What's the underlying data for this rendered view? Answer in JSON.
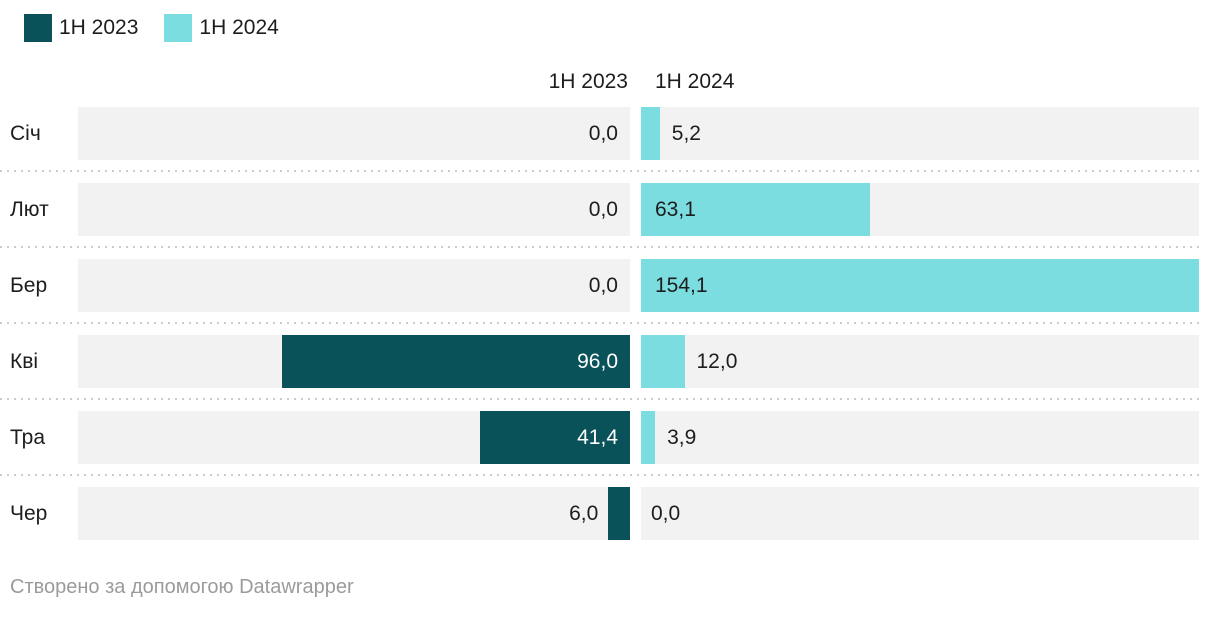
{
  "colors": {
    "series_2023": "#09525a",
    "series_2024": "#7bdde0",
    "track": "#f2f2f2",
    "text": "#1d1d1d",
    "value_on_dark": "#ffffff",
    "muted": "#9b9b9b",
    "separator": "#cbcbcb"
  },
  "legend": {
    "items": [
      {
        "label": "1Н 2023",
        "color_key": "series_2023"
      },
      {
        "label": "1Н 2024",
        "color_key": "series_2024"
      }
    ]
  },
  "columns": {
    "left_header": "1Н 2023",
    "right_header": "1Н 2024"
  },
  "chart_data": {
    "type": "bar",
    "orientation": "horizontal",
    "title": "",
    "categories": [
      "Січ",
      "Лют",
      "Бер",
      "Кві",
      "Тра",
      "Чер"
    ],
    "series": [
      {
        "name": "1Н 2023",
        "values": [
          0.0,
          0.0,
          0.0,
          96.0,
          41.4,
          6.0
        ],
        "labels": [
          "0,0",
          "0,0",
          "0,0",
          "96,0",
          "41,4",
          "6,0"
        ]
      },
      {
        "name": "1Н 2024",
        "values": [
          5.2,
          63.1,
          154.1,
          12.0,
          3.9,
          0.0
        ],
        "labels": [
          "5,2",
          "63,1",
          "154,1",
          "12,0",
          "3,9",
          "0,0"
        ]
      }
    ],
    "xlim": [
      0,
      154.1
    ],
    "grid": false,
    "legend_position": "top"
  },
  "footer": {
    "prefix": "Створено за допомогою ",
    "link": "Datawrapper"
  }
}
